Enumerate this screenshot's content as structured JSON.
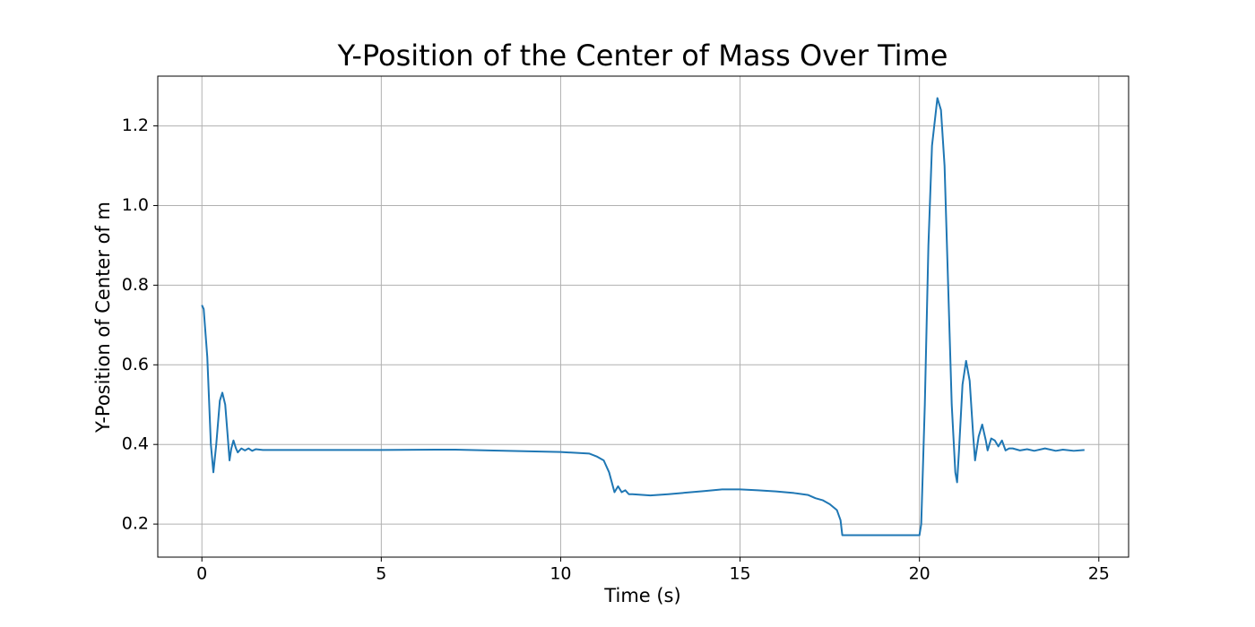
{
  "chart_data": {
    "type": "line",
    "title": "Y-Position of the Center of Mass Over Time",
    "x_label": "Time (s)",
    "y_label": "Y-Position of Center of  m",
    "color": "#1f77b4",
    "grid": true,
    "xlim": [
      -1.23,
      25.83
    ],
    "ylim": [
      0.117,
      1.325
    ],
    "xticks": [
      0,
      5,
      10,
      15,
      20,
      25
    ],
    "yticks": [
      0.2,
      0.4,
      0.6,
      0.8,
      {
        "value": 1,
        "label": "1.0"
      },
      1.2
    ],
    "x": [
      0,
      0.05,
      0.15,
      0.25,
      0.32,
      0.4,
      0.5,
      0.57,
      0.65,
      0.72,
      0.77,
      0.82,
      0.88,
      0.95,
      1.0,
      1.1,
      1.2,
      1.3,
      1.4,
      1.5,
      1.7,
      2.0,
      3,
      5,
      6.5,
      7,
      8,
      9,
      10,
      10.8,
      11.0,
      11.2,
      11.35,
      11.5,
      11.6,
      11.7,
      11.8,
      11.9,
      12.0,
      12.5,
      13,
      14,
      14.5,
      15,
      15.5,
      16,
      16.5,
      16.9,
      17.1,
      17.3,
      17.5,
      17.7,
      17.8,
      17.85,
      18,
      19,
      20,
      20.05,
      20.15,
      20.25,
      20.35,
      20.5,
      20.6,
      20.7,
      20.8,
      20.9,
      21.0,
      21.05,
      21.1,
      21.2,
      21.3,
      21.4,
      21.5,
      21.55,
      21.65,
      21.75,
      21.85,
      21.9,
      22.0,
      22.1,
      22.2,
      22.3,
      22.4,
      22.5,
      22.6,
      22.8,
      23,
      23.2,
      23.5,
      23.8,
      24,
      24.3,
      24.6
    ],
    "values": [
      0.75,
      0.74,
      0.62,
      0.4,
      0.33,
      0.4,
      0.51,
      0.53,
      0.5,
      0.42,
      0.36,
      0.39,
      0.41,
      0.39,
      0.38,
      0.39,
      0.385,
      0.39,
      0.384,
      0.388,
      0.386,
      0.386,
      0.386,
      0.386,
      0.387,
      0.387,
      0.385,
      0.383,
      0.381,
      0.377,
      0.37,
      0.36,
      0.33,
      0.28,
      0.295,
      0.28,
      0.285,
      0.275,
      0.275,
      0.272,
      0.275,
      0.283,
      0.287,
      0.287,
      0.285,
      0.282,
      0.278,
      0.273,
      0.265,
      0.26,
      0.25,
      0.235,
      0.21,
      0.172,
      0.172,
      0.172,
      0.172,
      0.2,
      0.5,
      0.9,
      1.15,
      1.27,
      1.24,
      1.1,
      0.8,
      0.5,
      0.33,
      0.305,
      0.38,
      0.55,
      0.61,
      0.56,
      0.42,
      0.36,
      0.42,
      0.45,
      0.41,
      0.385,
      0.415,
      0.41,
      0.395,
      0.41,
      0.385,
      0.39,
      0.39,
      0.385,
      0.388,
      0.384,
      0.39,
      0.384,
      0.387,
      0.384,
      0.386
    ]
  }
}
